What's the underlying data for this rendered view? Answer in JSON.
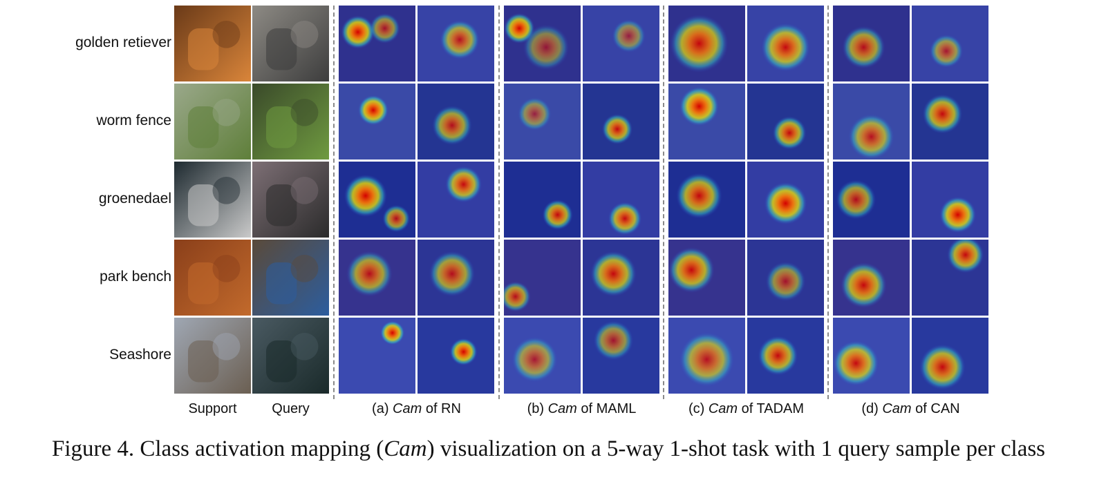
{
  "rows": [
    {
      "label": "golden retiever",
      "support": [
        "#6a3a18",
        "#d9853a"
      ],
      "query": [
        "#8d8a84",
        "#3d3d3d"
      ]
    },
    {
      "label": "worm fence",
      "support": [
        "#9aa88a",
        "#5f7f3a"
      ],
      "query": [
        "#3a4a2a",
        "#6f9a40"
      ]
    },
    {
      "label": "groenedael",
      "support": [
        "#1e2a30",
        "#c9c9c9"
      ],
      "query": [
        "#7d6f75",
        "#2b2b2b"
      ]
    },
    {
      "label": "park bench",
      "support": [
        "#8a3f1a",
        "#c26a2c"
      ],
      "query": [
        "#5a4a3a",
        "#2c5d9e"
      ]
    },
    {
      "label": "Seashore",
      "support": [
        "#9fa7b3",
        "#6b5f52"
      ],
      "query": [
        "#4a5a62",
        "#1a2a2a"
      ]
    }
  ],
  "columns": {
    "support": "Support",
    "query": "Query",
    "groups": [
      {
        "prefix": "(a) ",
        "cam": "Cam",
        "suffix": " of RN"
      },
      {
        "prefix": "(b) ",
        "cam": "Cam",
        "suffix": " of MAML"
      },
      {
        "prefix": "(c) ",
        "cam": "Cam",
        "suffix": " of TADAM"
      },
      {
        "prefix": "(d) ",
        "cam": "Cam",
        "suffix": " of CAN"
      }
    ]
  },
  "caption": {
    "lead": "Figure 4. Class activation mapping (",
    "cam": "Cam",
    "rest": ") visualization on a 5-way 1-shot task with 1 query sample per class"
  }
}
